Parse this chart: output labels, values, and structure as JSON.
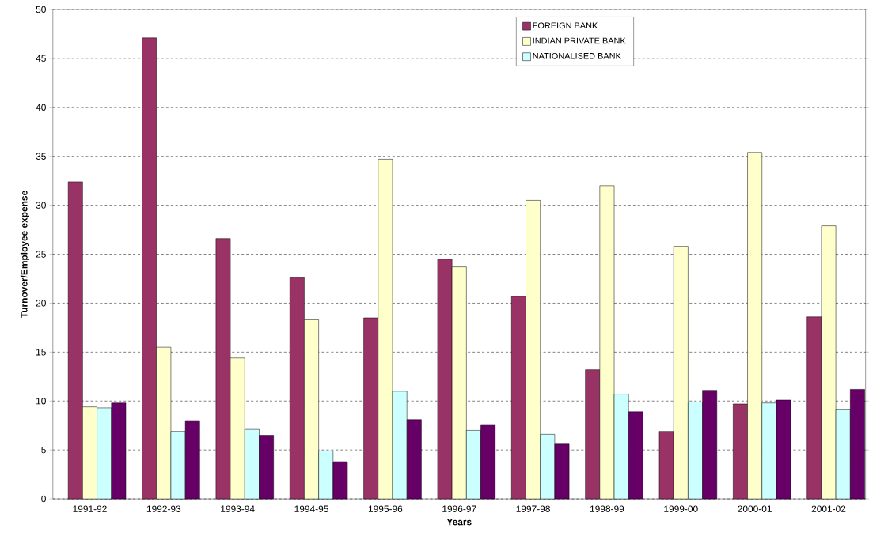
{
  "chart_data": {
    "type": "bar",
    "xlabel": "Years",
    "ylabel": "Turnover/Employee expense",
    "categories": [
      "1991-92",
      "1992-93",
      "1993-94",
      "1994-95",
      "1995-96",
      "1996-97",
      "1997-98",
      "1998-99",
      "1999-00",
      "2000-01",
      "2001-02"
    ],
    "series": [
      {
        "name": "FOREIGN BANK",
        "color": "#993366",
        "values": [
          32.4,
          47.1,
          26.6,
          22.6,
          18.5,
          24.5,
          20.7,
          13.2,
          6.9,
          9.7,
          18.6
        ]
      },
      {
        "name": "INDIAN PRIVATE BANK",
        "color": "#ffffcc",
        "values": [
          9.4,
          15.5,
          14.4,
          18.3,
          34.7,
          23.7,
          30.5,
          32.0,
          25.8,
          35.4,
          27.9
        ]
      },
      {
        "name": "NATIONALISED BANK",
        "color": "#ccffff",
        "values": [
          9.3,
          6.9,
          7.1,
          4.9,
          11.0,
          7.0,
          6.6,
          10.7,
          9.9,
          9.8,
          9.1
        ]
      },
      {
        "color": "#660066",
        "values": [
          9.8,
          8.0,
          6.5,
          3.8,
          8.1,
          7.6,
          5.6,
          8.9,
          11.1,
          10.1,
          11.2
        ]
      }
    ],
    "ylim": [
      0,
      50
    ],
    "yticks": [
      0,
      5,
      10,
      15,
      20,
      25,
      30,
      35,
      40,
      45,
      50
    ],
    "grid": "y",
    "legend": "top right"
  }
}
